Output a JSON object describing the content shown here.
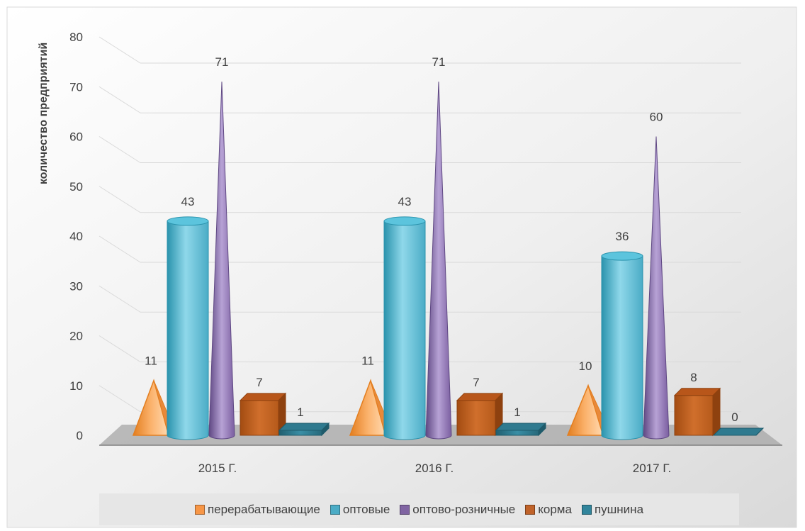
{
  "chart_data": {
    "type": "bar",
    "title": "",
    "xlabel": "",
    "ylabel": "количество предприятий",
    "ylim": [
      0,
      80
    ],
    "yticks": [
      0,
      10,
      20,
      30,
      40,
      50,
      60,
      70,
      80
    ],
    "grid": true,
    "legend_position": "bottom",
    "categories": [
      "2015 Г.",
      "2016 Г.",
      "2017 Г."
    ],
    "series": [
      {
        "name": "перерабатывающие",
        "shape": "pyramid",
        "color": "#f79646",
        "values": [
          11,
          11,
          10
        ]
      },
      {
        "name": "оптовые",
        "shape": "cylinder",
        "color": "#4bacc6",
        "values": [
          43,
          43,
          36
        ]
      },
      {
        "name": "оптово-розничные",
        "shape": "cone",
        "color": "#8064a2",
        "values": [
          71,
          71,
          60
        ]
      },
      {
        "name": "корма",
        "shape": "box",
        "color": "#c0632a",
        "values": [
          7,
          7,
          8
        ]
      },
      {
        "name": "пушнина",
        "shape": "box",
        "color": "#31859c",
        "values": [
          1,
          1,
          0
        ]
      }
    ]
  }
}
